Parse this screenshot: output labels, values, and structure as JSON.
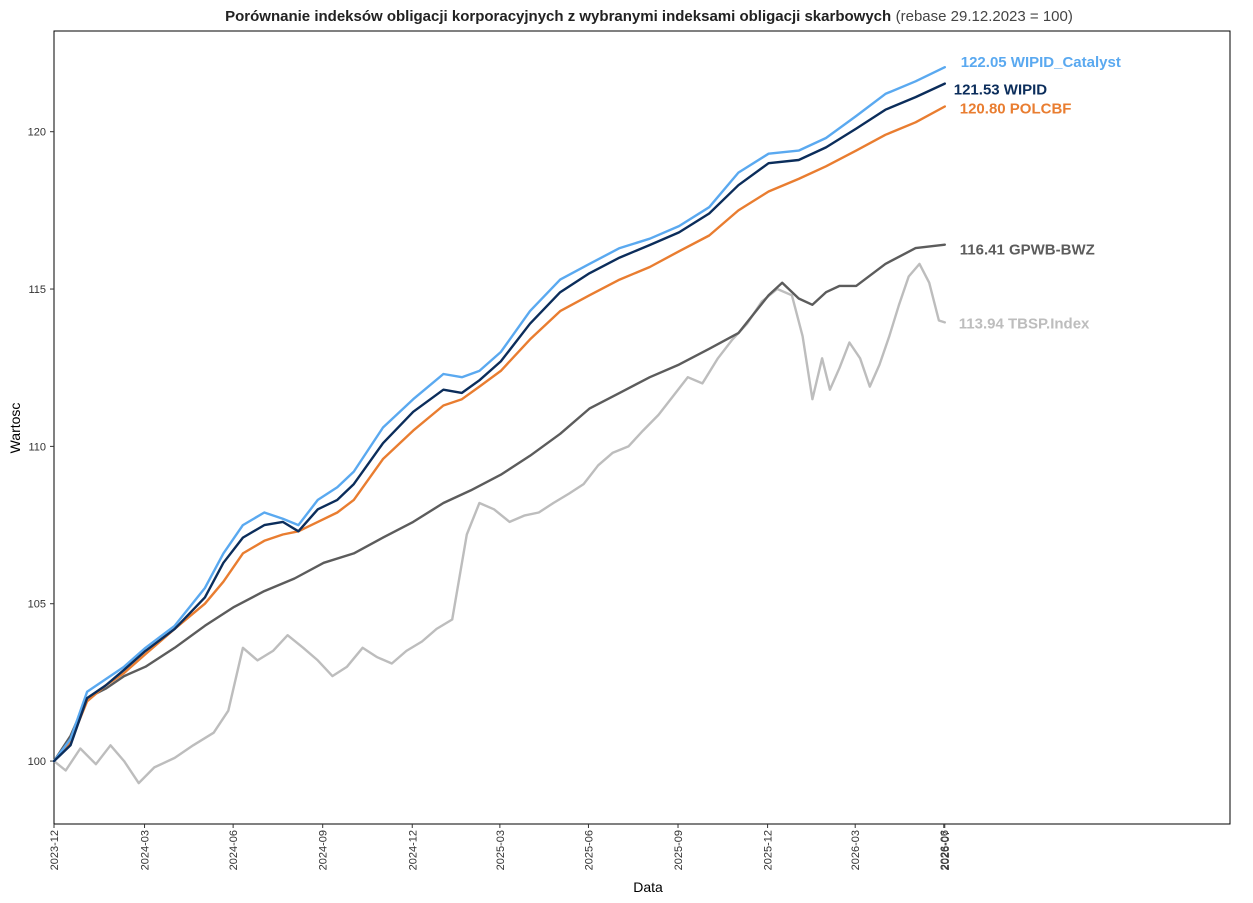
{
  "chart_data": {
    "type": "line",
    "title": "Porównanie indeksów obligacji korporacyjnych z wybranymi indeksami obligacji skarbowych",
    "subtitle": "(rebase 29.12.2023 = 100)",
    "xlabel": "Data",
    "ylabel": "Wartosc",
    "ylim": [
      98,
      123.2
    ],
    "xlim": [
      "2023-12-29",
      "2027-04-20"
    ],
    "y_ticks": [
      100,
      105,
      110,
      115,
      120
    ],
    "x_ticks": [
      "2023-12",
      "2024-03",
      "2024-06",
      "2024-09",
      "2024-12",
      "2025-03",
      "2025-06",
      "2025-09",
      "2025-12",
      "2026-03",
      "2026-06",
      "2026-07"
    ],
    "x_tick_dates": [
      "2023-12-29",
      "2024-03-31",
      "2024-06-30",
      "2024-09-30",
      "2024-12-31",
      "2025-03-31",
      "2025-06-30",
      "2025-09-30",
      "2025-12-31",
      "2026-03-31",
      "2026-06-30",
      "2026-07-01"
    ],
    "grid": false,
    "legend": "none",
    "series": [
      {
        "name": "WIPID_Catalyst",
        "color": "#5AA9F0",
        "end_label": "122.05 WIPID_Catalyst",
        "points": [
          [
            "2023-12-29",
            100.0
          ],
          [
            "2024-01-15",
            100.7
          ],
          [
            "2024-02-01",
            102.2
          ],
          [
            "2024-02-20",
            102.6
          ],
          [
            "2024-03-10",
            103.0
          ],
          [
            "2024-04-01",
            103.6
          ],
          [
            "2024-05-01",
            104.3
          ],
          [
            "2024-06-01",
            105.5
          ],
          [
            "2024-06-20",
            106.6
          ],
          [
            "2024-07-10",
            107.5
          ],
          [
            "2024-08-01",
            107.9
          ],
          [
            "2024-08-20",
            107.7
          ],
          [
            "2024-09-05",
            107.5
          ],
          [
            "2024-09-25",
            108.3
          ],
          [
            "2024-10-15",
            108.7
          ],
          [
            "2024-11-01",
            109.2
          ],
          [
            "2024-12-01",
            110.6
          ],
          [
            "2025-01-01",
            111.5
          ],
          [
            "2025-02-01",
            112.3
          ],
          [
            "2025-02-20",
            112.2
          ],
          [
            "2025-03-10",
            112.4
          ],
          [
            "2025-04-01",
            113.0
          ],
          [
            "2025-05-01",
            114.3
          ],
          [
            "2025-06-01",
            115.3
          ],
          [
            "2025-07-01",
            115.8
          ],
          [
            "2025-08-01",
            116.3
          ],
          [
            "2025-09-01",
            116.6
          ],
          [
            "2025-10-01",
            117.0
          ],
          [
            "2025-11-01",
            117.6
          ],
          [
            "2025-12-01",
            118.7
          ],
          [
            "2026-01-01",
            119.3
          ],
          [
            "2026-02-01",
            119.4
          ],
          [
            "2026-03-01",
            119.8
          ],
          [
            "2026-04-01",
            120.5
          ],
          [
            "2026-05-01",
            121.2
          ],
          [
            "2026-06-01",
            121.6
          ],
          [
            "2026-07-01",
            122.05
          ]
        ]
      },
      {
        "name": "WIPID",
        "color": "#0B2D5B",
        "end_label": "121.53 WIPID",
        "points": [
          [
            "2023-12-29",
            100.0
          ],
          [
            "2024-01-15",
            100.5
          ],
          [
            "2024-02-01",
            102.0
          ],
          [
            "2024-02-20",
            102.4
          ],
          [
            "2024-03-10",
            102.9
          ],
          [
            "2024-04-01",
            103.5
          ],
          [
            "2024-05-01",
            104.2
          ],
          [
            "2024-06-01",
            105.2
          ],
          [
            "2024-06-20",
            106.3
          ],
          [
            "2024-07-10",
            107.1
          ],
          [
            "2024-08-01",
            107.5
          ],
          [
            "2024-08-20",
            107.6
          ],
          [
            "2024-09-05",
            107.3
          ],
          [
            "2024-09-25",
            108.0
          ],
          [
            "2024-10-15",
            108.3
          ],
          [
            "2024-11-01",
            108.8
          ],
          [
            "2024-12-01",
            110.1
          ],
          [
            "2025-01-01",
            111.1
          ],
          [
            "2025-02-01",
            111.8
          ],
          [
            "2025-02-20",
            111.7
          ],
          [
            "2025-03-10",
            112.1
          ],
          [
            "2025-04-01",
            112.7
          ],
          [
            "2025-05-01",
            113.9
          ],
          [
            "2025-06-01",
            114.9
          ],
          [
            "2025-07-01",
            115.5
          ],
          [
            "2025-08-01",
            116.0
          ],
          [
            "2025-09-01",
            116.4
          ],
          [
            "2025-10-01",
            116.8
          ],
          [
            "2025-11-01",
            117.4
          ],
          [
            "2025-12-01",
            118.3
          ],
          [
            "2026-01-01",
            119.0
          ],
          [
            "2026-02-01",
            119.1
          ],
          [
            "2026-03-01",
            119.5
          ],
          [
            "2026-04-01",
            120.1
          ],
          [
            "2026-05-01",
            120.7
          ],
          [
            "2026-06-01",
            121.1
          ],
          [
            "2026-07-01",
            121.53
          ]
        ]
      },
      {
        "name": "POLCBF",
        "color": "#E97D30",
        "end_label": "120.80 POLCBF",
        "points": [
          [
            "2023-12-29",
            100.0
          ],
          [
            "2024-01-15",
            100.6
          ],
          [
            "2024-02-01",
            101.9
          ],
          [
            "2024-02-20",
            102.4
          ],
          [
            "2024-03-10",
            102.8
          ],
          [
            "2024-04-01",
            103.4
          ],
          [
            "2024-05-01",
            104.2
          ],
          [
            "2024-06-01",
            105.0
          ],
          [
            "2024-06-20",
            105.7
          ],
          [
            "2024-07-10",
            106.6
          ],
          [
            "2024-08-01",
            107.0
          ],
          [
            "2024-08-20",
            107.2
          ],
          [
            "2024-09-05",
            107.3
          ],
          [
            "2024-09-25",
            107.6
          ],
          [
            "2024-10-15",
            107.9
          ],
          [
            "2024-11-01",
            108.3
          ],
          [
            "2024-12-01",
            109.6
          ],
          [
            "2025-01-01",
            110.5
          ],
          [
            "2025-02-01",
            111.3
          ],
          [
            "2025-02-20",
            111.5
          ],
          [
            "2025-03-10",
            111.9
          ],
          [
            "2025-04-01",
            112.4
          ],
          [
            "2025-05-01",
            113.4
          ],
          [
            "2025-06-01",
            114.3
          ],
          [
            "2025-07-01",
            114.8
          ],
          [
            "2025-08-01",
            115.3
          ],
          [
            "2025-09-01",
            115.7
          ],
          [
            "2025-10-01",
            116.2
          ],
          [
            "2025-11-01",
            116.7
          ],
          [
            "2025-12-01",
            117.5
          ],
          [
            "2026-01-01",
            118.1
          ],
          [
            "2026-02-01",
            118.5
          ],
          [
            "2026-03-01",
            118.9
          ],
          [
            "2026-04-01",
            119.4
          ],
          [
            "2026-05-01",
            119.9
          ],
          [
            "2026-06-01",
            120.3
          ],
          [
            "2026-07-01",
            120.8
          ]
        ]
      },
      {
        "name": "GPWB-BWZ",
        "color": "#5C5C5C",
        "end_label": "116.41 GPWB-BWZ",
        "points": [
          [
            "2023-12-29",
            100.0
          ],
          [
            "2024-01-15",
            100.8
          ],
          [
            "2024-02-01",
            102.0
          ],
          [
            "2024-02-20",
            102.3
          ],
          [
            "2024-03-10",
            102.7
          ],
          [
            "2024-04-01",
            103.0
          ],
          [
            "2024-05-01",
            103.6
          ],
          [
            "2024-06-01",
            104.3
          ],
          [
            "2024-07-01",
            104.9
          ],
          [
            "2024-08-01",
            105.4
          ],
          [
            "2024-09-01",
            105.8
          ],
          [
            "2024-10-01",
            106.3
          ],
          [
            "2024-11-01",
            106.6
          ],
          [
            "2024-12-01",
            107.1
          ],
          [
            "2025-01-01",
            107.6
          ],
          [
            "2025-02-01",
            108.2
          ],
          [
            "2025-03-01",
            108.6
          ],
          [
            "2025-04-01",
            109.1
          ],
          [
            "2025-05-01",
            109.7
          ],
          [
            "2025-06-01",
            110.4
          ],
          [
            "2025-07-01",
            111.2
          ],
          [
            "2025-08-01",
            111.7
          ],
          [
            "2025-09-01",
            112.2
          ],
          [
            "2025-10-01",
            112.6
          ],
          [
            "2025-11-01",
            113.1
          ],
          [
            "2025-12-01",
            113.6
          ],
          [
            "2026-01-01",
            114.8
          ],
          [
            "2026-01-15",
            115.2
          ],
          [
            "2026-02-01",
            114.7
          ],
          [
            "2026-02-15",
            114.5
          ],
          [
            "2026-03-01",
            114.9
          ],
          [
            "2026-03-15",
            115.1
          ],
          [
            "2026-04-01",
            115.1
          ],
          [
            "2026-05-01",
            115.8
          ],
          [
            "2026-06-01",
            116.3
          ],
          [
            "2026-07-01",
            116.41
          ]
        ]
      },
      {
        "name": "TBSP.Index",
        "color": "#BDBDBD",
        "end_label": "113.94 TBSP.Index",
        "points": [
          [
            "2023-12-29",
            100.0
          ],
          [
            "2024-01-10",
            99.7
          ],
          [
            "2024-01-25",
            100.4
          ],
          [
            "2024-02-10",
            99.9
          ],
          [
            "2024-02-25",
            100.5
          ],
          [
            "2024-03-10",
            100.0
          ],
          [
            "2024-03-25",
            99.3
          ],
          [
            "2024-04-10",
            99.8
          ],
          [
            "2024-05-01",
            100.1
          ],
          [
            "2024-05-20",
            100.5
          ],
          [
            "2024-06-10",
            100.9
          ],
          [
            "2024-06-25",
            101.6
          ],
          [
            "2024-07-10",
            103.6
          ],
          [
            "2024-07-25",
            103.2
          ],
          [
            "2024-08-10",
            103.5
          ],
          [
            "2024-08-25",
            104.0
          ],
          [
            "2024-09-10",
            103.6
          ],
          [
            "2024-09-25",
            103.2
          ],
          [
            "2024-10-10",
            102.7
          ],
          [
            "2024-10-25",
            103.0
          ],
          [
            "2024-11-10",
            103.6
          ],
          [
            "2024-11-25",
            103.3
          ],
          [
            "2024-12-10",
            103.1
          ],
          [
            "2024-12-25",
            103.5
          ],
          [
            "2025-01-10",
            103.8
          ],
          [
            "2025-01-25",
            104.2
          ],
          [
            "2025-02-10",
            104.5
          ],
          [
            "2025-02-25",
            107.2
          ],
          [
            "2025-03-10",
            108.2
          ],
          [
            "2025-03-25",
            108.0
          ],
          [
            "2025-04-10",
            107.6
          ],
          [
            "2025-04-25",
            107.8
          ],
          [
            "2025-05-10",
            107.9
          ],
          [
            "2025-05-25",
            108.2
          ],
          [
            "2025-06-10",
            108.5
          ],
          [
            "2025-06-25",
            108.8
          ],
          [
            "2025-07-10",
            109.4
          ],
          [
            "2025-07-25",
            109.8
          ],
          [
            "2025-08-10",
            110.0
          ],
          [
            "2025-08-25",
            110.5
          ],
          [
            "2025-09-10",
            111.0
          ],
          [
            "2025-09-25",
            111.6
          ],
          [
            "2025-10-10",
            112.2
          ],
          [
            "2025-10-25",
            112.0
          ],
          [
            "2025-11-10",
            112.8
          ],
          [
            "2025-11-25",
            113.4
          ],
          [
            "2025-12-10",
            113.9
          ],
          [
            "2025-12-25",
            114.6
          ],
          [
            "2026-01-10",
            115.0
          ],
          [
            "2026-01-25",
            114.8
          ],
          [
            "2026-02-05",
            113.5
          ],
          [
            "2026-02-15",
            111.5
          ],
          [
            "2026-02-25",
            112.8
          ],
          [
            "2026-03-05",
            111.8
          ],
          [
            "2026-03-15",
            112.5
          ],
          [
            "2026-03-25",
            113.3
          ],
          [
            "2026-04-05",
            112.8
          ],
          [
            "2026-04-15",
            111.9
          ],
          [
            "2026-04-25",
            112.6
          ],
          [
            "2026-05-05",
            113.5
          ],
          [
            "2026-05-15",
            114.5
          ],
          [
            "2026-05-25",
            115.4
          ],
          [
            "2026-06-05",
            115.8
          ],
          [
            "2026-06-15",
            115.2
          ],
          [
            "2026-06-25",
            114.0
          ],
          [
            "2026-07-01",
            113.94
          ]
        ]
      }
    ]
  }
}
